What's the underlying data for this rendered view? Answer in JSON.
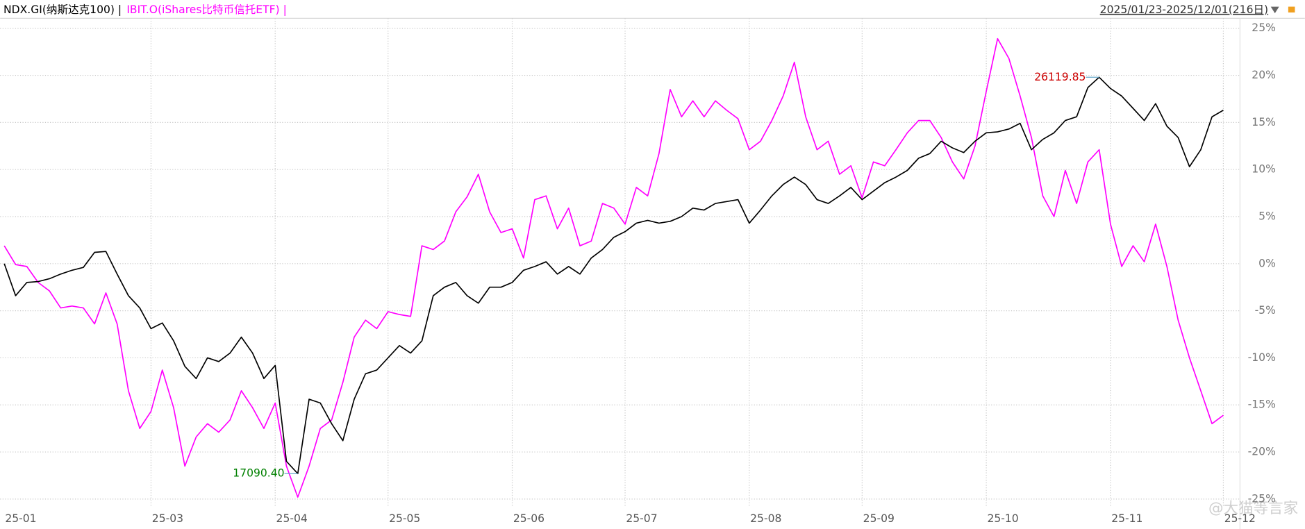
{
  "chart_data": {
    "type": "line",
    "date_range": "2025/01/23-2025/12/01(216日)",
    "watermark": "@大猫等言家",
    "categories": [
      "25-01",
      null,
      null,
      null,
      null,
      null,
      null,
      null,
      null,
      null,
      null,
      null,
      null,
      "25-03",
      null,
      null,
      null,
      null,
      null,
      null,
      null,
      null,
      null,
      null,
      "25-04",
      null,
      null,
      null,
      null,
      null,
      null,
      null,
      null,
      null,
      "25-05",
      null,
      null,
      null,
      null,
      null,
      null,
      null,
      null,
      null,
      null,
      "25-06",
      null,
      null,
      null,
      null,
      null,
      null,
      null,
      null,
      null,
      "25-07",
      null,
      null,
      null,
      null,
      null,
      null,
      null,
      null,
      null,
      null,
      "25-08",
      null,
      null,
      null,
      null,
      null,
      null,
      null,
      null,
      null,
      "25-09",
      null,
      null,
      null,
      null,
      null,
      null,
      null,
      null,
      null,
      null,
      "25-10",
      null,
      null,
      null,
      null,
      null,
      null,
      null,
      null,
      null,
      null,
      "25-11",
      null,
      null,
      null,
      null,
      null,
      null,
      null,
      null,
      null,
      "25-12"
    ],
    "series": [
      {
        "name": "NDX.GI(纳斯达克100) |",
        "color": "#000000",
        "values": [
          0,
          -3.4,
          -2.0,
          -1.9,
          -1.6,
          -1.1,
          -0.7,
          -0.4,
          1.2,
          1.3,
          -1.1,
          -3.4,
          -4.7,
          -6.9,
          -6.3,
          -8.2,
          -10.9,
          -12.2,
          -10.0,
          -10.4,
          -9.5,
          -7.8,
          -9.5,
          -12.2,
          -10.8,
          -21.0,
          -22.3,
          -14.4,
          -14.8,
          -17.0,
          -18.8,
          -14.4,
          -11.7,
          -11.3,
          -10.0,
          -8.7,
          -9.5,
          -8.2,
          -3.4,
          -2.5,
          -2.0,
          -3.4,
          -4.2,
          -2.5,
          -2.5,
          -2.0,
          -0.7,
          -0.3,
          0.2,
          -1.1,
          -0.3,
          -1.1,
          0.6,
          1.5,
          2.8,
          3.4,
          4.3,
          4.6,
          4.3,
          4.5,
          5.0,
          5.9,
          5.7,
          6.4,
          6.6,
          6.8,
          4.3,
          5.7,
          7.2,
          8.4,
          9.2,
          8.4,
          6.8,
          6.4,
          7.2,
          8.1,
          6.8,
          7.7,
          8.6,
          9.2,
          9.9,
          11.2,
          11.7,
          13.0,
          12.3,
          11.8,
          13.0,
          13.9,
          14.0,
          14.3,
          14.9,
          12.1,
          13.2,
          13.9,
          15.2,
          15.6,
          18.7,
          19.8,
          18.6,
          17.8,
          16.5,
          15.2,
          17.0,
          14.6,
          13.4,
          10.3,
          12.1,
          15.6,
          16.3
        ],
        "annotations": [
          "26119.85",
          "17090.40"
        ]
      },
      {
        "name": "IBIT.O(iShares比特币信托ETF) |",
        "color": "#ff00ff",
        "values": [
          1.9,
          -0.1,
          -0.3,
          -2.0,
          -2.9,
          -4.7,
          -4.5,
          -4.7,
          -6.4,
          -3.1,
          -6.4,
          -13.5,
          -17.5,
          -15.7,
          -11.3,
          -15.3,
          -21.5,
          -18.4,
          -17.0,
          -17.9,
          -16.6,
          -13.5,
          -15.3,
          -17.5,
          -14.8,
          -21.5,
          -24.8,
          -21.5,
          -17.5,
          -16.6,
          -12.6,
          -7.8,
          -6.0,
          -6.9,
          -5.1,
          -5.4,
          -5.6,
          1.9,
          1.5,
          2.4,
          5.5,
          7.1,
          9.5,
          5.5,
          3.3,
          3.7,
          0.6,
          6.8,
          7.2,
          3.7,
          5.9,
          1.9,
          2.4,
          6.4,
          5.9,
          4.2,
          8.1,
          7.2,
          11.7,
          18.5,
          15.6,
          17.3,
          15.6,
          17.3,
          16.3,
          15.4,
          12.1,
          13.0,
          15.2,
          17.8,
          21.4,
          15.6,
          12.1,
          13.0,
          9.5,
          10.4,
          7.0,
          10.8,
          10.4,
          12.1,
          13.9,
          15.2,
          15.2,
          13.4,
          10.8,
          9.0,
          12.5,
          18.3,
          23.9,
          21.8,
          17.8,
          13.4,
          7.2,
          5.0,
          9.9,
          6.4,
          10.8,
          12.1,
          4.2,
          -0.3,
          1.9,
          0.2,
          4.2,
          -0.3,
          -6.0,
          -10.0,
          -13.5,
          -17.0,
          -16.1
        ]
      }
    ],
    "ylim": [
      -25,
      25
    ],
    "yticks": [
      {
        "value": 25,
        "label": "25%"
      },
      {
        "value": 20,
        "label": "20%"
      },
      {
        "value": 15,
        "label": "15%"
      },
      {
        "value": 10,
        "label": "10%"
      },
      {
        "value": 5,
        "label": "5%"
      },
      {
        "value": 0,
        "label": "0%"
      },
      {
        "value": -5,
        "label": "-5%"
      },
      {
        "value": -10,
        "label": "-10%"
      },
      {
        "value": -15,
        "label": "-15%"
      },
      {
        "value": -20,
        "label": "-20%"
      },
      {
        "value": -25,
        "label": "-25%"
      }
    ],
    "grid": true
  }
}
